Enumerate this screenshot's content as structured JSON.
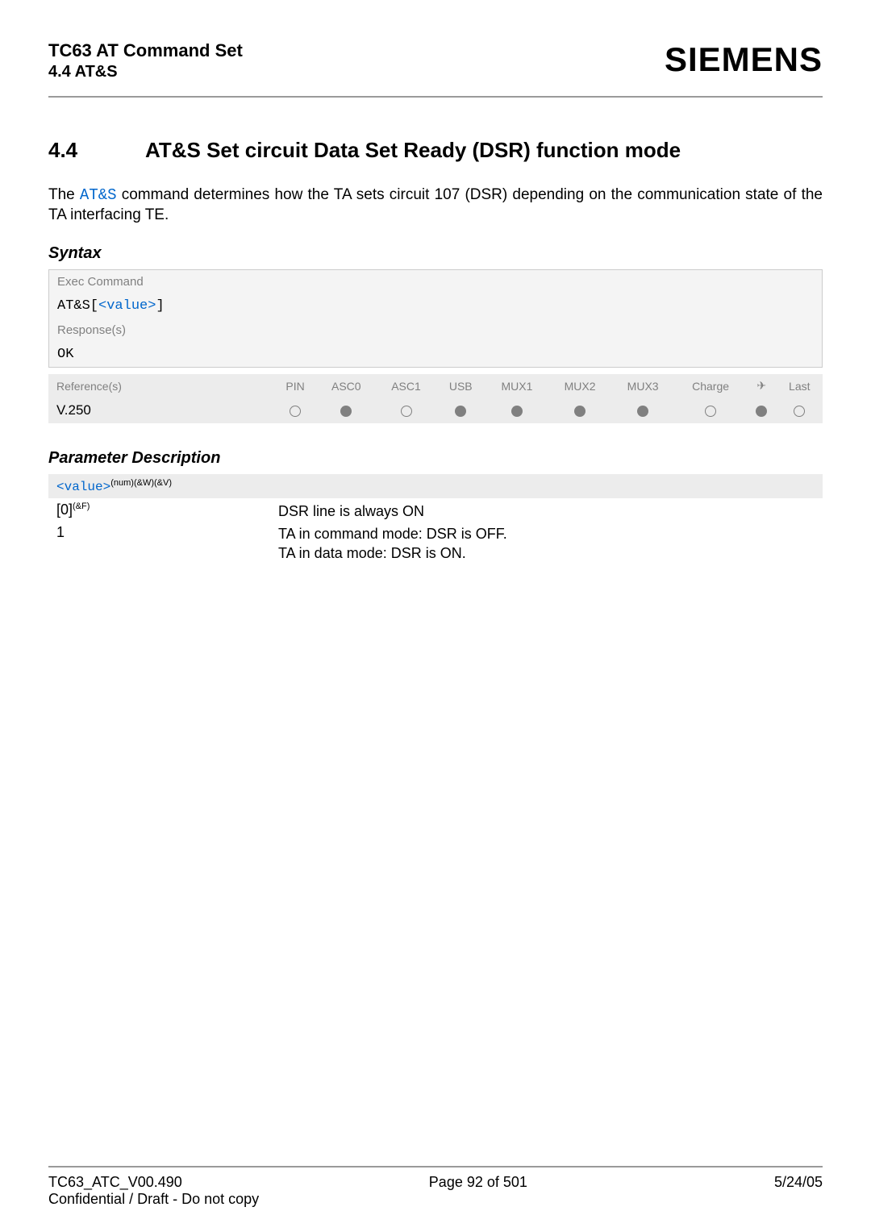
{
  "header": {
    "doc_title": "TC63 AT Command Set",
    "doc_sub": "4.4 AT&S",
    "logo": "SIEMENS"
  },
  "section": {
    "number": "4.4",
    "title": "AT&S   Set circuit Data Set Ready (DSR) function mode"
  },
  "intro": {
    "pre": "The ",
    "link": "AT&S",
    "post": " command determines how the TA sets circuit 107 (DSR) depending on the communication state of the TA interfacing TE."
  },
  "syntax": {
    "heading": "Syntax",
    "exec_label": "Exec Command",
    "exec_pre": "AT&S[",
    "exec_link": "<value>",
    "exec_post": "]",
    "response_label": "Response(s)",
    "response_value": "OK"
  },
  "ref": {
    "label": "Reference(s)",
    "ref_name": "V.250",
    "columns": [
      "PIN",
      "ASC0",
      "ASC1",
      "USB",
      "MUX1",
      "MUX2",
      "MUX3",
      "Charge",
      "✈",
      "Last"
    ],
    "states": [
      "open",
      "filled",
      "open",
      "filled",
      "filled",
      "filled",
      "filled",
      "open",
      "filled",
      "open"
    ]
  },
  "params": {
    "heading": "Parameter Description",
    "bar_code": "<value>",
    "bar_sup": "(num)(&W)(&V)",
    "rows": [
      {
        "key": "[0]",
        "sup": "(&F)",
        "val": "DSR line is always ON"
      },
      {
        "key": "1",
        "sup": "",
        "val": "TA in command mode: DSR is OFF.\nTA in data mode: DSR is ON."
      }
    ]
  },
  "footer": {
    "left": "TC63_ATC_V00.490",
    "center": "Page 92 of 501",
    "right": "5/24/05",
    "left2": "Confidential / Draft - Do not copy"
  },
  "colors": {
    "rule": "#9a9a9a",
    "grey_text": "#808080",
    "bg_grey": "#ececec",
    "link": "#0066cc"
  }
}
